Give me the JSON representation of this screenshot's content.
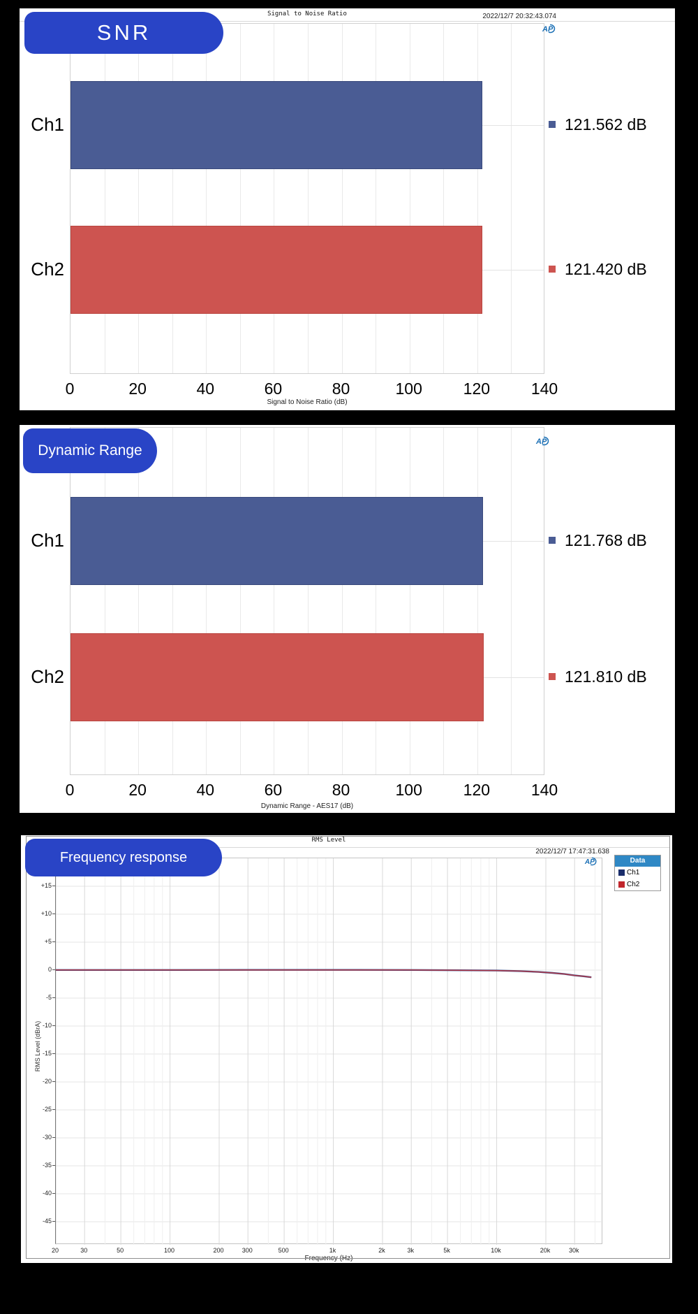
{
  "colors": {
    "background": "#000000",
    "panel": "#ffffff",
    "badge_blue": "#2944c6",
    "ch1_bar": "#4a5c94",
    "ch2_bar": "#cd5450",
    "ch1_line": "#2c4a8c",
    "ch2_line": "#b23a48",
    "ch1_legend": "#1a2d6b",
    "ch2_legend": "#c1272d",
    "legend_header_bg": "#2f88c5",
    "ap_logo_blue": "#1a6fb5"
  },
  "panels": {
    "snr": {
      "badge": "SNR",
      "title": "Signal to Noise Ratio",
      "timestamp": "2022/12/7 20:32:43.074",
      "caption": "Signal to Noise Ratio (dB)"
    },
    "dynamic_range": {
      "badge": "Dynamic Range",
      "caption": "Dynamic Range - AES17 (dB)"
    },
    "frequency_response": {
      "badge": "Frequency response",
      "title": "RMS Level",
      "timestamp": "2022/12/7 17:47:31.638",
      "caption": "Frequency (Hz)",
      "ylabel": "RMS Level (dBrA)",
      "legend": {
        "header": "Data",
        "items": [
          {
            "label": "Ch1",
            "color": "#1a2d6b"
          },
          {
            "label": "Ch2",
            "color": "#c1272d"
          }
        ]
      }
    },
    "ap_logo_text": "AP"
  },
  "chart_data": [
    {
      "id": "snr",
      "type": "bar",
      "orientation": "horizontal",
      "title": "Signal to Noise Ratio",
      "categories": [
        "Ch1",
        "Ch2"
      ],
      "values": [
        121.562,
        121.42
      ],
      "value_labels": [
        "121.562 dB",
        "121.420 dB"
      ],
      "bar_colors": [
        "#4a5c94",
        "#cd5450"
      ],
      "bar_border_colors": [
        "#39497c",
        "#b9453f"
      ],
      "xlabel": "Signal to Noise Ratio (dB)",
      "xlim": [
        0,
        140
      ],
      "x_ticks": [
        0,
        20,
        40,
        60,
        80,
        100,
        120,
        140
      ],
      "grid_step": 10,
      "grid": true,
      "legend_position": "none"
    },
    {
      "id": "dynamic_range",
      "type": "bar",
      "orientation": "horizontal",
      "title": "Dynamic Range",
      "categories": [
        "Ch1",
        "Ch2"
      ],
      "values": [
        121.768,
        121.81
      ],
      "value_labels": [
        "121.768 dB",
        "121.810 dB"
      ],
      "bar_colors": [
        "#4a5c94",
        "#cd5450"
      ],
      "bar_border_colors": [
        "#39497c",
        "#b9453f"
      ],
      "xlabel": "Dynamic Range - AES17 (dB)",
      "xlim": [
        0,
        140
      ],
      "x_ticks": [
        0,
        20,
        40,
        60,
        80,
        100,
        120,
        140
      ],
      "grid_step": 10,
      "grid": true,
      "legend_position": "none"
    },
    {
      "id": "frequency_response",
      "type": "line",
      "title": "RMS Level",
      "xlabel": "Frequency (Hz)",
      "ylabel": "RMS Level (dBrA)",
      "xscale": "log",
      "xlim": [
        20,
        45000
      ],
      "ylim": [
        -49,
        20
      ],
      "y_ticks": [
        15,
        10,
        5,
        0,
        -5,
        -10,
        -15,
        -20,
        -25,
        -30,
        -35,
        -40,
        -45
      ],
      "y_tick_labels": [
        "+15",
        "+10",
        "+5",
        "0",
        "-5",
        "-10",
        "-15",
        "-20",
        "-25",
        "-30",
        "-35",
        "-40",
        "-45"
      ],
      "x_ticks": [
        20,
        30,
        50,
        100,
        200,
        300,
        500,
        1000,
        2000,
        3000,
        5000,
        10000,
        20000,
        30000
      ],
      "x_tick_labels": [
        "20",
        "30",
        "50",
        "100",
        "200",
        "300",
        "500",
        "1k",
        "2k",
        "3k",
        "5k",
        "10k",
        "20k",
        "30k"
      ],
      "grid": true,
      "legend_position": "top-right",
      "series": [
        {
          "name": "Ch1",
          "color": "#2c4a8c",
          "points": [
            [
              20,
              0.02
            ],
            [
              50,
              0.03
            ],
            [
              100,
              0.03
            ],
            [
              300,
              0.04
            ],
            [
              1000,
              0.04
            ],
            [
              3000,
              0.02
            ],
            [
              6000,
              -0.02
            ],
            [
              10000,
              -0.08
            ],
            [
              14000,
              -0.18
            ],
            [
              18000,
              -0.32
            ],
            [
              22000,
              -0.5
            ],
            [
              26000,
              -0.7
            ],
            [
              30000,
              -0.95
            ],
            [
              34000,
              -1.1
            ],
            [
              38000,
              -1.28
            ]
          ]
        },
        {
          "name": "Ch2",
          "color": "#b23a48",
          "points": [
            [
              20,
              0.02
            ],
            [
              50,
              0.03
            ],
            [
              100,
              0.03
            ],
            [
              300,
              0.04
            ],
            [
              1000,
              0.04
            ],
            [
              3000,
              0.02
            ],
            [
              6000,
              -0.02
            ],
            [
              10000,
              -0.08
            ],
            [
              14000,
              -0.18
            ],
            [
              18000,
              -0.32
            ],
            [
              22000,
              -0.5
            ],
            [
              26000,
              -0.7
            ],
            [
              30000,
              -0.95
            ],
            [
              34000,
              -1.1
            ],
            [
              38000,
              -1.28
            ]
          ]
        }
      ]
    }
  ]
}
